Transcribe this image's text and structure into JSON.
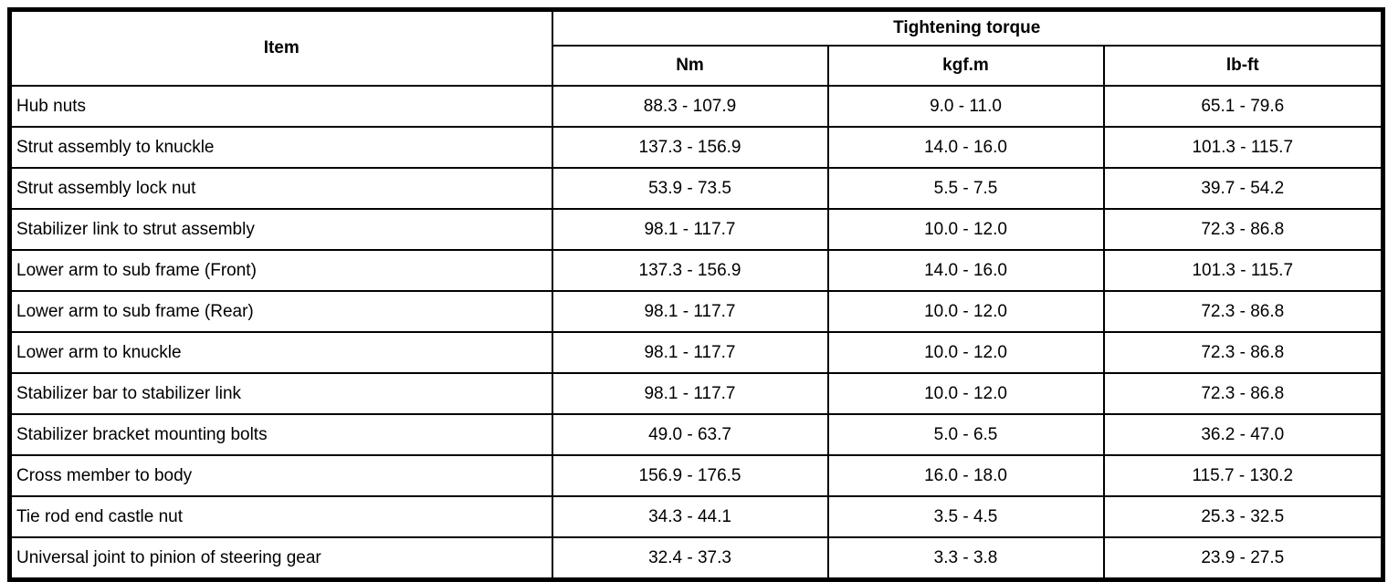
{
  "table": {
    "header": {
      "item_label": "Item",
      "group_label": "Tightening torque",
      "unit_columns": [
        "Nm",
        "kgf.m",
        "lb-ft"
      ]
    },
    "rows": [
      {
        "item": "Hub nuts",
        "nm": "88.3 - 107.9",
        "kgfm": "9.0 - 11.0",
        "lbft": "65.1 - 79.6"
      },
      {
        "item": "Strut assembly to knuckle",
        "nm": "137.3 - 156.9",
        "kgfm": "14.0 - 16.0",
        "lbft": "101.3 - 115.7"
      },
      {
        "item": "Strut assembly lock nut",
        "nm": "53.9 - 73.5",
        "kgfm": "5.5 - 7.5",
        "lbft": "39.7 - 54.2"
      },
      {
        "item": "Stabilizer link to strut assembly",
        "nm": "98.1 - 117.7",
        "kgfm": "10.0 - 12.0",
        "lbft": "72.3 - 86.8"
      },
      {
        "item": "Lower arm to sub frame (Front)",
        "nm": "137.3 - 156.9",
        "kgfm": "14.0 - 16.0",
        "lbft": "101.3 - 115.7"
      },
      {
        "item": "Lower arm to sub frame (Rear)",
        "nm": "98.1 - 117.7",
        "kgfm": "10.0 - 12.0",
        "lbft": "72.3 - 86.8"
      },
      {
        "item": "Lower arm to knuckle",
        "nm": "98.1 - 117.7",
        "kgfm": "10.0 - 12.0",
        "lbft": "72.3 - 86.8"
      },
      {
        "item": "Stabilizer bar to stabilizer link",
        "nm": "98.1 - 117.7",
        "kgfm": "10.0 - 12.0",
        "lbft": "72.3 - 86.8"
      },
      {
        "item": "Stabilizer bracket mounting bolts",
        "nm": "49.0 - 63.7",
        "kgfm": "5.0 - 6.5",
        "lbft": "36.2 - 47.0"
      },
      {
        "item": "Cross member to body",
        "nm": "156.9 - 176.5",
        "kgfm": "16.0 - 18.0",
        "lbft": "115.7 - 130.2"
      },
      {
        "item": "Tie rod end castle nut",
        "nm": "34.3 - 44.1",
        "kgfm": "3.5 - 4.5",
        "lbft": "25.3 - 32.5"
      },
      {
        "item": "Universal joint to pinion of steering gear",
        "nm": "32.4 - 37.3",
        "kgfm": "3.3 - 3.8",
        "lbft": "23.9 - 27.5"
      }
    ]
  }
}
